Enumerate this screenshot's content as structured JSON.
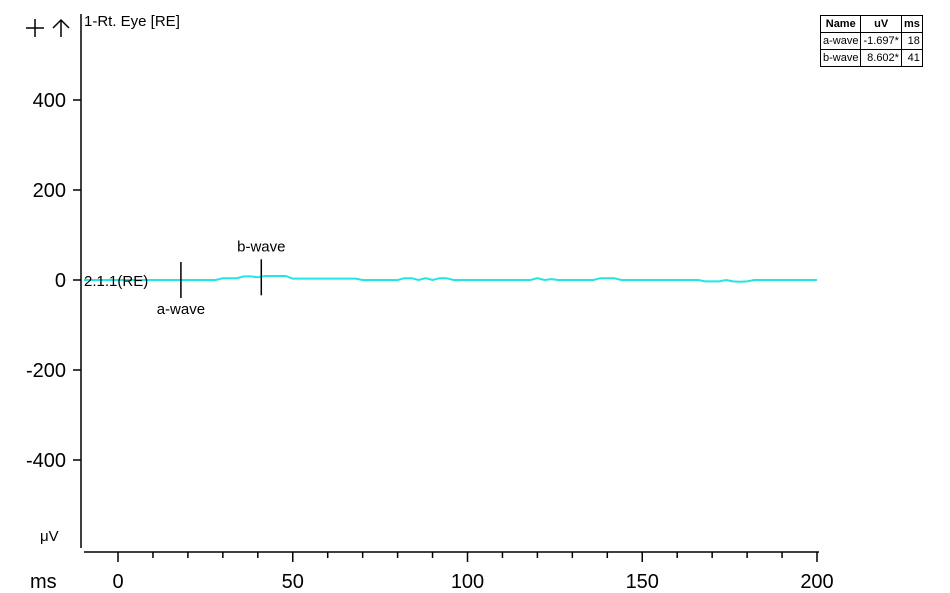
{
  "toolbar": {
    "zoom_icon": "plus-icon",
    "up_icon": "up-arrow-icon"
  },
  "chart_data": {
    "type": "line",
    "title": "1-Rt. Eye [RE]",
    "xlabel": "ms",
    "ylabel": "μV",
    "xlim": [
      -10,
      200
    ],
    "ylim": [
      -580,
      570
    ],
    "x_ticks": [
      0,
      50,
      100,
      150,
      200
    ],
    "y_ticks": [
      400,
      200,
      0,
      -200,
      -400
    ],
    "grid": false,
    "series": [
      {
        "name": "2.1.1(RE)",
        "color": "#22e5e5",
        "x": [
          -10,
          28,
          30,
          34,
          36,
          38,
          40,
          42,
          48,
          50,
          68,
          70,
          80,
          82,
          84,
          86,
          88,
          90,
          92,
          94,
          96,
          118,
          120,
          122,
          124,
          126,
          128,
          136,
          138,
          142,
          144,
          166,
          168,
          170,
          172,
          174,
          176,
          178,
          180,
          182,
          200
        ],
        "y": [
          0,
          0,
          4,
          4,
          8,
          8,
          6,
          9,
          9,
          3,
          3,
          0,
          0,
          4,
          4,
          0,
          4,
          0,
          4,
          4,
          0,
          0,
          4,
          0,
          2,
          0,
          0,
          0,
          4,
          4,
          0,
          0,
          -3,
          -3,
          -3,
          0,
          -3,
          -4,
          -3,
          0,
          0
        ]
      }
    ],
    "markers": [
      {
        "name": "a-wave",
        "x": 18,
        "label_position": "below"
      },
      {
        "name": "b-wave",
        "x": 41,
        "label_position": "above"
      }
    ]
  },
  "results_table": {
    "headers": [
      "Name",
      "uV",
      "ms"
    ],
    "rows": [
      [
        "a-wave",
        "-1.697*",
        "18"
      ],
      [
        "b-wave",
        "8.602*",
        "41"
      ]
    ]
  }
}
